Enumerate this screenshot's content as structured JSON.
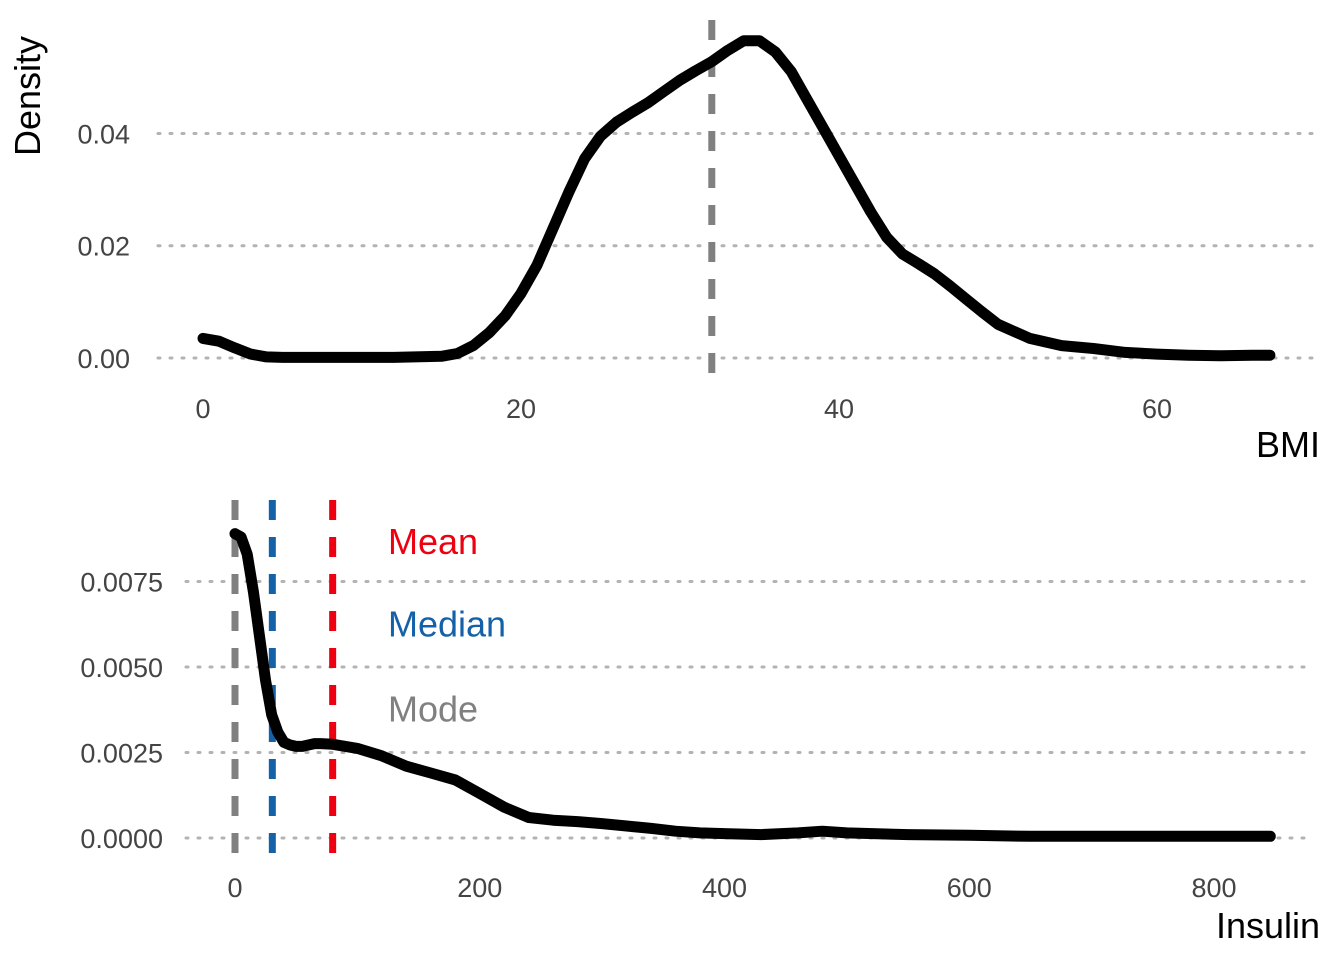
{
  "chart_data": [
    {
      "type": "line",
      "xlabel": "BMI",
      "ylabel": "Density",
      "xlim": [
        0,
        67.1
      ],
      "ylim": [
        0,
        0.057
      ],
      "x_ticks": [
        0,
        20,
        40,
        60
      ],
      "x_tick_labels": [
        "0",
        "20",
        "40",
        "60"
      ],
      "y_ticks": [
        0,
        0.02,
        0.04
      ],
      "y_tick_labels": [
        "0.00",
        "0.02",
        "0.04"
      ],
      "grid": "horizontal-dotted",
      "series": [
        {
          "color": "#000000",
          "x": [
            0,
            1,
            2,
            3,
            4,
            5,
            8,
            12,
            15,
            16,
            17,
            18,
            19,
            20,
            21,
            22,
            23,
            24,
            25,
            26,
            27,
            28,
            29,
            30,
            31,
            32,
            33,
            34,
            35,
            36,
            37,
            38,
            39,
            40,
            41,
            42,
            43,
            44,
            45,
            46,
            47,
            48,
            49,
            50,
            52,
            54,
            56,
            58,
            60,
            62,
            64,
            66,
            67.1
          ],
          "y": [
            0.0035,
            0.003,
            0.0018,
            0.0007,
            0.0002,
            0.0001,
            0.0001,
            0.0001,
            0.0003,
            0.0008,
            0.0022,
            0.0045,
            0.0075,
            0.0115,
            0.0165,
            0.023,
            0.0295,
            0.0355,
            0.0395,
            0.042,
            0.0438,
            0.0455,
            0.0475,
            0.0495,
            0.0512,
            0.0528,
            0.0548,
            0.0565,
            0.0565,
            0.0545,
            0.051,
            0.046,
            0.041,
            0.036,
            0.031,
            0.026,
            0.0215,
            0.0185,
            0.0168,
            0.015,
            0.0128,
            0.0105,
            0.0082,
            0.006,
            0.0035,
            0.0022,
            0.0017,
            0.001,
            0.0007,
            0.0005,
            0.0004,
            0.0005,
            0.0005
          ]
        }
      ],
      "reference_lines": [
        {
          "name": "Mode",
          "x": 32,
          "color": "#808080"
        }
      ]
    },
    {
      "type": "line",
      "xlabel": "Insulin",
      "ylabel": "",
      "xlim": [
        0,
        846
      ],
      "ylim": [
        0,
        0.0093
      ],
      "x_ticks": [
        0,
        200,
        400,
        600,
        800
      ],
      "x_tick_labels": [
        "0",
        "200",
        "400",
        "600",
        "800"
      ],
      "y_ticks": [
        0,
        0.0025,
        0.005,
        0.0075
      ],
      "y_tick_labels": [
        "0.0000",
        "0.0025",
        "0.0050",
        "0.0075"
      ],
      "grid": "horizontal-dotted",
      "series": [
        {
          "color": "#000000",
          "x": [
            0,
            5,
            10,
            15,
            20,
            25,
            30,
            35,
            40,
            45,
            50,
            55,
            60,
            65,
            70,
            80,
            100,
            120,
            140,
            160,
            180,
            200,
            220,
            240,
            260,
            280,
            300,
            320,
            340,
            360,
            380,
            400,
            430,
            460,
            480,
            500,
            550,
            600,
            650,
            700,
            750,
            800,
            846
          ],
          "y": [
            0.0089,
            0.0088,
            0.0083,
            0.0072,
            0.0059,
            0.0046,
            0.0036,
            0.0031,
            0.0028,
            0.00272,
            0.00268,
            0.00268,
            0.00272,
            0.00276,
            0.00276,
            0.00274,
            0.00262,
            0.0024,
            0.0021,
            0.0019,
            0.0017,
            0.0013,
            0.0009,
            0.0006,
            0.00052,
            0.00048,
            0.00042,
            0.00035,
            0.00028,
            0.0002,
            0.00015,
            0.00013,
            0.0001,
            0.00015,
            0.0002,
            0.00015,
            0.0001,
            8e-05,
            5e-05,
            5e-05,
            5e-05,
            5e-05,
            5e-05
          ]
        }
      ],
      "reference_lines": [
        {
          "name": "Mode",
          "x": 0,
          "color": "#808080"
        },
        {
          "name": "Median",
          "x": 30.5,
          "color": "#1561a8"
        },
        {
          "name": "Mean",
          "x": 79.8,
          "color": "#ee0010"
        }
      ],
      "annotations": [
        {
          "text": "Mean",
          "color": "#ee0010",
          "x": 125,
          "y": 0.0083
        },
        {
          "text": "Median",
          "color": "#1561a8",
          "x": 125,
          "y": 0.0059
        },
        {
          "text": "Mode",
          "color": "#808080",
          "x": 125,
          "y": 0.0034
        }
      ]
    }
  ]
}
